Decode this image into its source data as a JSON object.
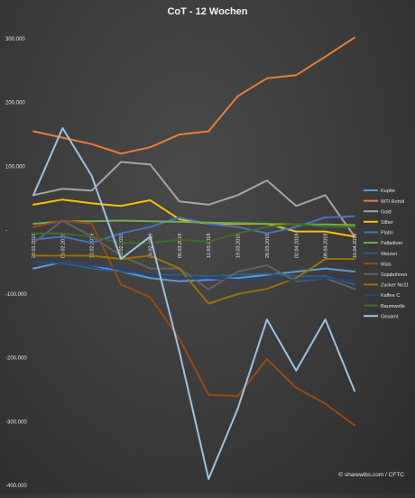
{
  "chart_data": {
    "type": "line",
    "title": "CoT - 12 Wochen",
    "footer": "© sharewibs.com / CFTC",
    "xlabel": "",
    "ylabel": "",
    "ylim": [
      -400000,
      300000
    ],
    "grid": false,
    "legend_position": "right",
    "y_tick_values": [
      300000,
      200000,
      100000,
      0,
      -100000,
      -200000,
      -300000,
      -400000
    ],
    "y_tick_labels": [
      "300.000",
      "200.000",
      "100.000",
      "-",
      "-100.000",
      "-200.000",
      "-300.000",
      "-400.000"
    ],
    "categories": [
      "29.01.2019",
      "05.02.2019",
      "12.02.2019",
      "19.02.2019",
      "26.02.2019",
      "05.03.2019",
      "12.03.2019",
      "19.03.2019",
      "26.03.2019",
      "02.04.2019",
      "09.04.2019",
      "16.04.2019"
    ],
    "series": [
      {
        "name": "Kupfer",
        "color": "#5b9bd5",
        "values": [
          -60000,
          -50000,
          -55000,
          -65000,
          -75000,
          -80000,
          -78000,
          -75000,
          -70000,
          -65000,
          -60000,
          -65000
        ]
      },
      {
        "name": "WTI Rohöl",
        "color": "#ed7d31",
        "values": [
          155000,
          145000,
          135000,
          120000,
          130000,
          150000,
          155000,
          210000,
          238000,
          243000,
          272000,
          302000
        ]
      },
      {
        "name": "Gold",
        "color": "#a5a5a5",
        "values": [
          55000,
          65000,
          62000,
          107000,
          103000,
          45000,
          40000,
          55000,
          78000,
          38000,
          55000,
          -10000
        ]
      },
      {
        "name": "Silber",
        "color": "#ffc000",
        "values": [
          40000,
          48000,
          42000,
          38000,
          47000,
          17000,
          10000,
          10000,
          10000,
          -2000,
          -2000,
          -10000
        ]
      },
      {
        "name": "Platin",
        "color": "#4472c4",
        "values": [
          -15000,
          -10000,
          -20000,
          -5000,
          5000,
          20000,
          10000,
          5000,
          -5000,
          5000,
          20000,
          22000
        ]
      },
      {
        "name": "Palladium",
        "color": "#70ad47",
        "values": [
          10000,
          14000,
          14000,
          15000,
          14000,
          13000,
          12000,
          11000,
          10000,
          9000,
          9000,
          8000
        ]
      },
      {
        "name": "Weizen",
        "color": "#255e91",
        "values": [
          -50000,
          -52000,
          -60000,
          -65000,
          -70000,
          -70000,
          -72000,
          -70000,
          -68000,
          -72000,
          -72000,
          -85000
        ]
      },
      {
        "name": "Mais",
        "color": "#9e480e",
        "values": [
          5000,
          15000,
          10000,
          -85000,
          -105000,
          -170000,
          -258000,
          -260000,
          -202000,
          -247000,
          -272000,
          -306000
        ]
      },
      {
        "name": "Sojabohnen",
        "color": "#636363",
        "values": [
          -20000,
          15000,
          -10000,
          -40000,
          -60000,
          -60000,
          -93000,
          -65000,
          -55000,
          -80000,
          -75000,
          -92000
        ]
      },
      {
        "name": "Zucker No11",
        "color": "#997300",
        "values": [
          -40000,
          -40000,
          -40000,
          -45000,
          -40000,
          -60000,
          -115000,
          -100000,
          -92000,
          -75000,
          -45000,
          -45000
        ]
      },
      {
        "name": "Kaffee C",
        "color": "#264478",
        "values": [
          -50000,
          -50000,
          -55000,
          -60000,
          -70000,
          -75000,
          -75000,
          -78000,
          -78000,
          -78000,
          -75000,
          -80000
        ]
      },
      {
        "name": "Baumwolle",
        "color": "#43682b",
        "values": [
          -5000,
          -5000,
          -10000,
          -20000,
          -20000,
          -15000,
          -18000,
          -5000,
          5000,
          10000,
          5000,
          5000
        ]
      },
      {
        "name": "Gesamt",
        "color": "#9dc3e6",
        "values": [
          55000,
          160000,
          85000,
          -45000,
          -10000,
          -190000,
          -390000,
          -280000,
          -140000,
          -220000,
          -140000,
          -252000
        ]
      }
    ]
  }
}
